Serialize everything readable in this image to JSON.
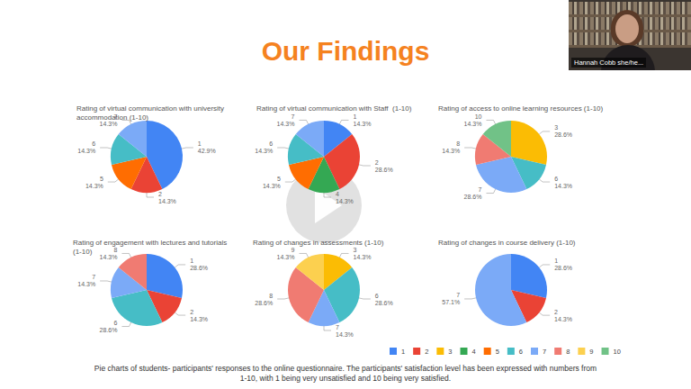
{
  "page": {
    "heading": "Our Findings",
    "caption": "Pie charts of students- participants' responses to the online questionnaire. The participants' satisfaction level has been expressed with numbers from 1-10, with 1 being very unsatisfied and 10 being very satisfied.",
    "presenter": "Hannah Cobb she/he..."
  },
  "shared_legend": {
    "labels": [
      "1",
      "2",
      "3",
      "4",
      "5",
      "6",
      "7",
      "8",
      "9",
      "10"
    ],
    "colors": [
      "#4285f4",
      "#ea4335",
      "#fbbc04",
      "#34a853",
      "#ff6d01",
      "#46bdc6",
      "#7baaf7",
      "#f07b72",
      "#fcd04f",
      "#71c287"
    ]
  },
  "chart_data": [
    {
      "type": "pie",
      "title": "Rating of virtual communication with university accommodation (1-10)",
      "categories": [
        "1",
        "2",
        "5",
        "6",
        "7"
      ],
      "values": [
        42.9,
        14.3,
        14.3,
        14.3,
        14.3
      ],
      "value_labels": [
        "42.9%",
        "14.3%",
        "14.3%",
        "14.3%",
        "14.3%"
      ],
      "colors": [
        "#4285f4",
        "#ea4335",
        "#ff6d01",
        "#46bdc6",
        "#7baaf7"
      ],
      "data_labels": true
    },
    {
      "type": "pie",
      "title": "Rating of virtual communication with Staff  (1-10)",
      "categories": [
        "1",
        "2",
        "4",
        "5",
        "6",
        "7"
      ],
      "values": [
        14.3,
        28.6,
        14.3,
        14.3,
        14.3,
        14.3
      ],
      "value_labels": [
        "14.3%",
        "28.6%",
        "14.3%",
        "14.3%",
        "14.3%",
        "14.3%"
      ],
      "colors": [
        "#4285f4",
        "#ea4335",
        "#34a853",
        "#ff6d01",
        "#46bdc6",
        "#7baaf7"
      ],
      "data_labels": true
    },
    {
      "type": "pie",
      "title": "Rating of access to online learning resources (1-10)",
      "categories": [
        "3",
        "6",
        "7",
        "8",
        "10"
      ],
      "values": [
        28.6,
        14.3,
        28.6,
        14.3,
        14.3
      ],
      "value_labels": [
        "28.6%",
        "14.3%",
        "28.6%",
        "14.3%",
        "14.3%"
      ],
      "colors": [
        "#fbbc04",
        "#46bdc6",
        "#7baaf7",
        "#f07b72",
        "#71c287"
      ],
      "data_labels": true
    },
    {
      "type": "pie",
      "title": "Rating of engagement with lectures and tutorials  (1-10)",
      "categories": [
        "1",
        "2",
        "6",
        "7",
        "8"
      ],
      "values": [
        28.6,
        14.3,
        28.6,
        14.3,
        14.3
      ],
      "value_labels": [
        "28.6%",
        "14.3%",
        "28.6%",
        "14.3%",
        "14.3%"
      ],
      "colors": [
        "#4285f4",
        "#ea4335",
        "#46bdc6",
        "#7baaf7",
        "#f07b72"
      ],
      "data_labels": true
    },
    {
      "type": "pie",
      "title": "Rating of changes in assessments (1-10)",
      "categories": [
        "3",
        "6",
        "7",
        "8",
        "9"
      ],
      "values": [
        14.3,
        28.6,
        14.3,
        28.6,
        14.3
      ],
      "value_labels": [
        "14.3%",
        "28.6%",
        "14.3%",
        "28.6%",
        "14.3%"
      ],
      "colors": [
        "#fbbc04",
        "#46bdc6",
        "#7baaf7",
        "#f07b72",
        "#fcd04f"
      ],
      "data_labels": true
    },
    {
      "type": "pie",
      "title": "Rating of changes in course delivery (1-10)",
      "categories": [
        "1",
        "2",
        "7"
      ],
      "values": [
        28.6,
        14.3,
        57.1
      ],
      "value_labels": [
        "28.6%",
        "14.3%",
        "57.1%"
      ],
      "colors": [
        "#4285f4",
        "#ea4335",
        "#7baaf7"
      ],
      "data_labels": true
    }
  ]
}
